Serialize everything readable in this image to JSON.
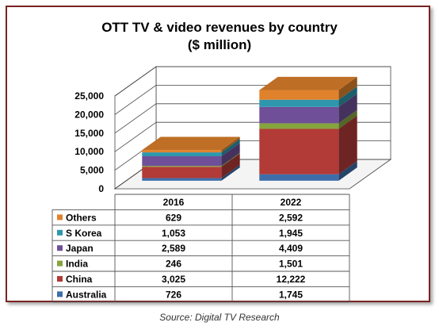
{
  "chart_data": {
    "type": "bar",
    "stacked": true,
    "three_d": true,
    "title": "OTT TV & video revenues by country",
    "subtitle": "($ million)",
    "categories": [
      "2016",
      "2022"
    ],
    "ylim": [
      0,
      25000
    ],
    "yticks": [
      0,
      5000,
      10000,
      15000,
      20000,
      25000
    ],
    "ytick_labels": [
      "0",
      "5,000",
      "10,000",
      "15,000",
      "20,000",
      "25,000"
    ],
    "legend_placement": "data table below plot",
    "grid": false,
    "series": [
      {
        "name": "Australia",
        "values": [
          726,
          1745
        ],
        "labels": [
          "726",
          "1,745"
        ],
        "color": "#3e6eaa"
      },
      {
        "name": "China",
        "values": [
          3025,
          12222
        ],
        "labels": [
          "3,025",
          "12,222"
        ],
        "color": "#b23a37"
      },
      {
        "name": "India",
        "values": [
          246,
          1501
        ],
        "labels": [
          "246",
          "1,501"
        ],
        "color": "#86a43d"
      },
      {
        "name": "Japan",
        "values": [
          2589,
          4409
        ],
        "labels": [
          "2,589",
          "4,409"
        ],
        "color": "#6f4f98"
      },
      {
        "name": "S Korea",
        "values": [
          1053,
          1945
        ],
        "labels": [
          "1,053",
          "1,945"
        ],
        "color": "#2f97ad"
      },
      {
        "name": "Others",
        "values": [
          629,
          2592
        ],
        "labels": [
          "629",
          "2,592"
        ],
        "color": "#e0822b"
      }
    ]
  },
  "source": "Source: Digital TV Research"
}
